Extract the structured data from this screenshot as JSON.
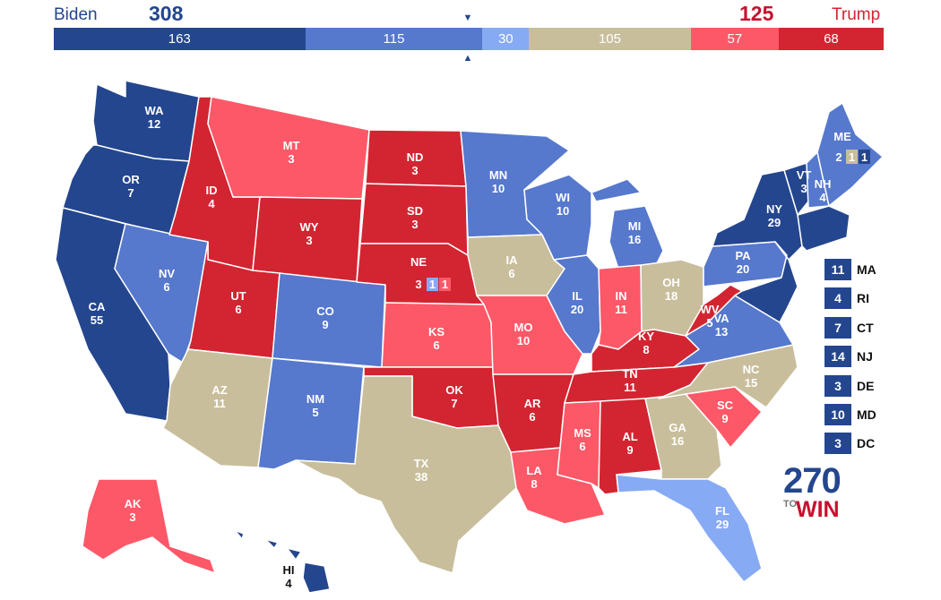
{
  "colors": {
    "safe_d": "#24468e",
    "likely_d": "#5678cd",
    "lean_d": "#87aaf4",
    "tossup": "#c9be9c",
    "lean_r": "#fd5868",
    "likely_r": "#d22531",
    "safe_r": "#d22531"
  },
  "header": {
    "dem_name": "Biden",
    "dem_total": "308",
    "rep_name": "Trump",
    "rep_total": "125",
    "marker_down": "▼",
    "marker_up": "▲",
    "segments": [
      {
        "value": 163,
        "label": "163",
        "color": "#24468e"
      },
      {
        "value": 115,
        "label": "115",
        "color": "#5678cd"
      },
      {
        "value": 30,
        "label": "30",
        "color": "#87aaf4"
      },
      {
        "value": 105,
        "label": "105",
        "color": "#c9be9c"
      },
      {
        "value": 57,
        "label": "57",
        "color": "#fd5868"
      },
      {
        "value": 68,
        "label": "68",
        "color": "#d22531"
      }
    ]
  },
  "states": {
    "WA": {
      "abbr": "WA",
      "ev": "12",
      "rating": "safe_d"
    },
    "OR": {
      "abbr": "OR",
      "ev": "7",
      "rating": "safe_d"
    },
    "CA": {
      "abbr": "CA",
      "ev": "55",
      "rating": "safe_d"
    },
    "NV": {
      "abbr": "NV",
      "ev": "6",
      "rating": "likely_d"
    },
    "ID": {
      "abbr": "ID",
      "ev": "4",
      "rating": "safe_r"
    },
    "MT": {
      "abbr": "MT",
      "ev": "3",
      "rating": "lean_r"
    },
    "WY": {
      "abbr": "WY",
      "ev": "3",
      "rating": "safe_r"
    },
    "UT": {
      "abbr": "UT",
      "ev": "6",
      "rating": "safe_r"
    },
    "AZ": {
      "abbr": "AZ",
      "ev": "11",
      "rating": "tossup"
    },
    "CO": {
      "abbr": "CO",
      "ev": "9",
      "rating": "likely_d"
    },
    "NM": {
      "abbr": "NM",
      "ev": "5",
      "rating": "likely_d"
    },
    "ND": {
      "abbr": "ND",
      "ev": "3",
      "rating": "safe_r"
    },
    "SD": {
      "abbr": "SD",
      "ev": "3",
      "rating": "safe_r"
    },
    "NE": {
      "abbr": "NE",
      "ev": "3",
      "rating": "safe_r",
      "districts": [
        "1",
        "1"
      ]
    },
    "KS": {
      "abbr": "KS",
      "ev": "6",
      "rating": "lean_r"
    },
    "OK": {
      "abbr": "OK",
      "ev": "7",
      "rating": "safe_r"
    },
    "TX": {
      "abbr": "TX",
      "ev": "38",
      "rating": "tossup"
    },
    "MN": {
      "abbr": "MN",
      "ev": "10",
      "rating": "likely_d"
    },
    "IA": {
      "abbr": "IA",
      "ev": "6",
      "rating": "tossup"
    },
    "MO": {
      "abbr": "MO",
      "ev": "10",
      "rating": "lean_r"
    },
    "AR": {
      "abbr": "AR",
      "ev": "6",
      "rating": "safe_r"
    },
    "LA": {
      "abbr": "LA",
      "ev": "8",
      "rating": "lean_r"
    },
    "WI": {
      "abbr": "WI",
      "ev": "10",
      "rating": "likely_d"
    },
    "IL": {
      "abbr": "IL",
      "ev": "20",
      "rating": "likely_d"
    },
    "MI": {
      "abbr": "MI",
      "ev": "16",
      "rating": "likely_d"
    },
    "IN": {
      "abbr": "IN",
      "ev": "11",
      "rating": "lean_r"
    },
    "OH": {
      "abbr": "OH",
      "ev": "18",
      "rating": "tossup"
    },
    "KY": {
      "abbr": "KY",
      "ev": "8",
      "rating": "safe_r"
    },
    "TN": {
      "abbr": "TN",
      "ev": "11",
      "rating": "safe_r"
    },
    "MS": {
      "abbr": "MS",
      "ev": "6",
      "rating": "lean_r"
    },
    "AL": {
      "abbr": "AL",
      "ev": "9",
      "rating": "safe_r"
    },
    "GA": {
      "abbr": "GA",
      "ev": "16",
      "rating": "tossup"
    },
    "FL": {
      "abbr": "FL",
      "ev": "29",
      "rating": "lean_d"
    },
    "SC": {
      "abbr": "SC",
      "ev": "9",
      "rating": "lean_r"
    },
    "NC": {
      "abbr": "NC",
      "ev": "15",
      "rating": "tossup"
    },
    "VA": {
      "abbr": "VA",
      "ev": "13",
      "rating": "likely_d"
    },
    "WV": {
      "abbr": "WV",
      "ev": "5",
      "rating": "safe_r"
    },
    "PA": {
      "abbr": "PA",
      "ev": "20",
      "rating": "likely_d"
    },
    "NY": {
      "abbr": "NY",
      "ev": "29",
      "rating": "safe_d"
    },
    "VT": {
      "abbr": "VT",
      "ev": "3",
      "rating": "safe_d"
    },
    "NH": {
      "abbr": "NH",
      "ev": "4",
      "rating": "likely_d"
    },
    "ME": {
      "abbr": "ME",
      "ev": "2",
      "rating": "likely_d",
      "districts": [
        "1",
        "1"
      ]
    },
    "AK": {
      "abbr": "AK",
      "ev": "3",
      "rating": "lean_r"
    },
    "HI": {
      "abbr": "HI",
      "ev": "4",
      "rating": "safe_d"
    }
  },
  "small_states": [
    {
      "ev": "11",
      "abbr": "MA"
    },
    {
      "ev": "4",
      "abbr": "RI"
    },
    {
      "ev": "7",
      "abbr": "CT"
    },
    {
      "ev": "14",
      "abbr": "NJ"
    },
    {
      "ev": "3",
      "abbr": "DE"
    },
    {
      "ev": "10",
      "abbr": "MD"
    },
    {
      "ev": "3",
      "abbr": "DC"
    }
  ],
  "logo": {
    "number": "270",
    "to": "TO",
    "win": "WIN"
  }
}
